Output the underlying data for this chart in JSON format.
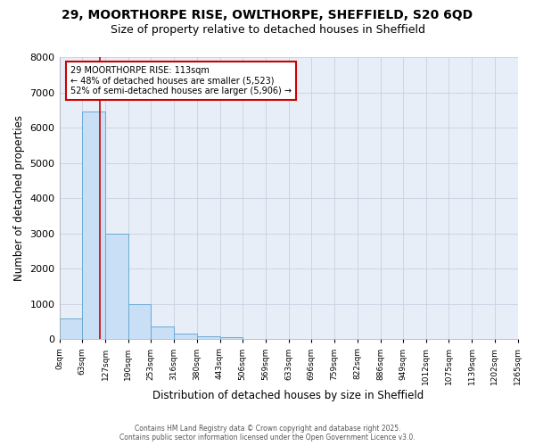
{
  "title_line1": "29, MOORTHORPE RISE, OWLTHORPE, SHEFFIELD, S20 6QD",
  "title_line2": "Size of property relative to detached houses in Sheffield",
  "xlabel": "Distribution of detached houses by size in Sheffield",
  "ylabel": "Number of detached properties",
  "bar_edges": [
    0,
    63,
    127,
    190,
    253,
    316,
    380,
    443,
    506,
    569,
    633,
    696,
    759,
    822,
    886,
    949,
    1012,
    1075,
    1139,
    1202,
    1265
  ],
  "bar_heights": [
    580,
    6450,
    2980,
    990,
    350,
    160,
    90,
    70,
    0,
    0,
    0,
    0,
    0,
    0,
    0,
    0,
    0,
    0,
    0,
    0
  ],
  "bar_color": "#c8dff5",
  "bar_edgecolor": "#6aaad4",
  "bar_linewidth": 0.7,
  "vline_x": 113,
  "vline_color": "#cc0000",
  "vline_linewidth": 1.2,
  "annotation_title": "29 MOORTHORPE RISE: 113sqm",
  "annotation_line1": "← 48% of detached houses are smaller (5,523)",
  "annotation_line2": "52% of semi-detached houses are larger (5,906) →",
  "annotation_box_edgecolor": "#cc0000",
  "annotation_box_facecolor": "#ffffff",
  "ylim": [
    0,
    8000
  ],
  "yticks": [
    0,
    1000,
    2000,
    3000,
    4000,
    5000,
    6000,
    7000,
    8000
  ],
  "tick_labels": [
    "0sqm",
    "63sqm",
    "127sqm",
    "190sqm",
    "253sqm",
    "316sqm",
    "380sqm",
    "443sqm",
    "506sqm",
    "569sqm",
    "633sqm",
    "696sqm",
    "759sqm",
    "822sqm",
    "886sqm",
    "949sqm",
    "1012sqm",
    "1075sqm",
    "1139sqm",
    "1202sqm",
    "1265sqm"
  ],
  "grid_color": "#c8d0e0",
  "plot_bg_color": "#e8eef8",
  "figure_bg_color": "#ffffff",
  "footer_line1": "Contains HM Land Registry data © Crown copyright and database right 2025.",
  "footer_line2": "Contains public sector information licensed under the Open Government Licence v3.0."
}
